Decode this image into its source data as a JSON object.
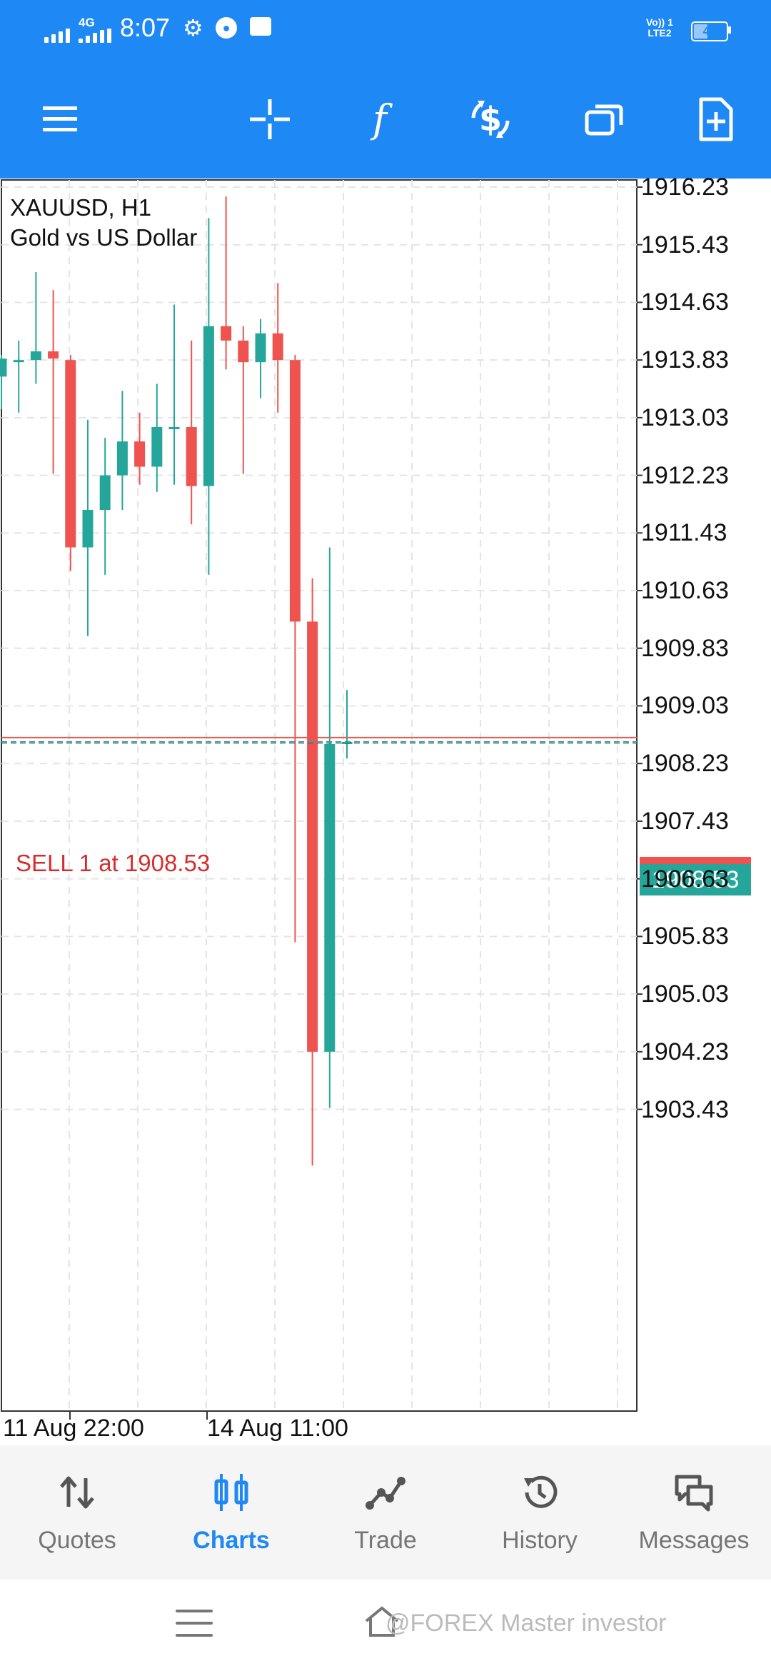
{
  "status_bar": {
    "network": "4G",
    "time": "8:07",
    "volte": [
      "Vo)) 1",
      "LTE2"
    ],
    "battery": "43",
    "battery_level": 0.43
  },
  "toolbar": {
    "items": [
      "menu-icon",
      "crosshair-icon",
      "indicators-icon",
      "trade-icon",
      "windows-icon",
      "new-order-icon"
    ]
  },
  "chart": {
    "symbol": "XAUUSD, H1",
    "description": "Gold vs US Dollar",
    "bid_price": "1908.53",
    "sell_line_label": "SELL 1 at 1908.53",
    "up_color": "#26a69a",
    "down_color": "#ef5350"
  },
  "chart_data": {
    "type": "candlestick",
    "title": "XAUUSD, H1",
    "subtitle": "Gold vs US Dollar",
    "ylim": [
      1902.6,
      1916.3
    ],
    "y_ticks": [
      "1916.23",
      "1915.43",
      "1914.63",
      "1913.83",
      "1913.03",
      "1912.23",
      "1911.43",
      "1910.63",
      "1909.83",
      "1909.03",
      "1908.23",
      "1907.43",
      "1906.63",
      "1905.83",
      "1905.03",
      "1904.23",
      "1903.43"
    ],
    "x_ticks": [
      "11 Aug 22:00",
      "14 Aug 11:00"
    ],
    "sell_line": 1908.53,
    "bid": 1908.53,
    "candles": [
      {
        "o": 1913.6,
        "h": 1913.9,
        "l": 1913.15,
        "c": 1913.85
      },
      {
        "o": 1913.8,
        "h": 1914.1,
        "l": 1913.1,
        "c": 1913.83
      },
      {
        "o": 1913.83,
        "h": 1915.05,
        "l": 1913.5,
        "c": 1913.95
      },
      {
        "o": 1913.95,
        "h": 1914.8,
        "l": 1912.25,
        "c": 1913.85
      },
      {
        "o": 1913.83,
        "h": 1913.9,
        "l": 1910.9,
        "c": 1911.23
      },
      {
        "o": 1911.23,
        "h": 1913.0,
        "l": 1910.0,
        "c": 1911.75
      },
      {
        "o": 1911.75,
        "h": 1912.75,
        "l": 1910.85,
        "c": 1912.23
      },
      {
        "o": 1912.23,
        "h": 1913.4,
        "l": 1911.75,
        "c": 1912.7
      },
      {
        "o": 1912.7,
        "h": 1913.1,
        "l": 1912.1,
        "c": 1912.35
      },
      {
        "o": 1912.35,
        "h": 1913.5,
        "l": 1912.0,
        "c": 1912.9
      },
      {
        "o": 1912.9,
        "h": 1914.6,
        "l": 1912.1,
        "c": 1912.9
      },
      {
        "o": 1912.9,
        "h": 1914.1,
        "l": 1911.55,
        "c": 1912.08
      },
      {
        "o": 1912.08,
        "h": 1915.8,
        "l": 1910.85,
        "c": 1914.3
      },
      {
        "o": 1914.3,
        "h": 1916.1,
        "l": 1913.7,
        "c": 1914.1
      },
      {
        "o": 1914.1,
        "h": 1914.3,
        "l": 1912.25,
        "c": 1913.8
      },
      {
        "o": 1913.8,
        "h": 1914.4,
        "l": 1913.3,
        "c": 1914.2
      },
      {
        "o": 1914.2,
        "h": 1914.9,
        "l": 1913.1,
        "c": 1913.83
      },
      {
        "o": 1913.83,
        "h": 1913.9,
        "l": 1905.75,
        "c": 1910.2
      },
      {
        "o": 1910.2,
        "h": 1910.8,
        "l": 1902.65,
        "c": 1904.23
      },
      {
        "o": 1904.23,
        "h": 1911.23,
        "l": 1903.45,
        "c": 1908.5
      },
      {
        "o": 1908.5,
        "h": 1909.25,
        "l": 1908.3,
        "c": 1908.53
      }
    ]
  },
  "bottom_nav": {
    "items": [
      {
        "label": "Quotes",
        "icon": "quotes-icon"
      },
      {
        "label": "Charts",
        "icon": "charts-icon",
        "active": true
      },
      {
        "label": "Trade",
        "icon": "trade-icon"
      },
      {
        "label": "History",
        "icon": "history-icon"
      },
      {
        "label": "Messages",
        "icon": "messages-icon"
      }
    ]
  },
  "system_nav": {
    "watermark": "@FOREX Master investor"
  }
}
